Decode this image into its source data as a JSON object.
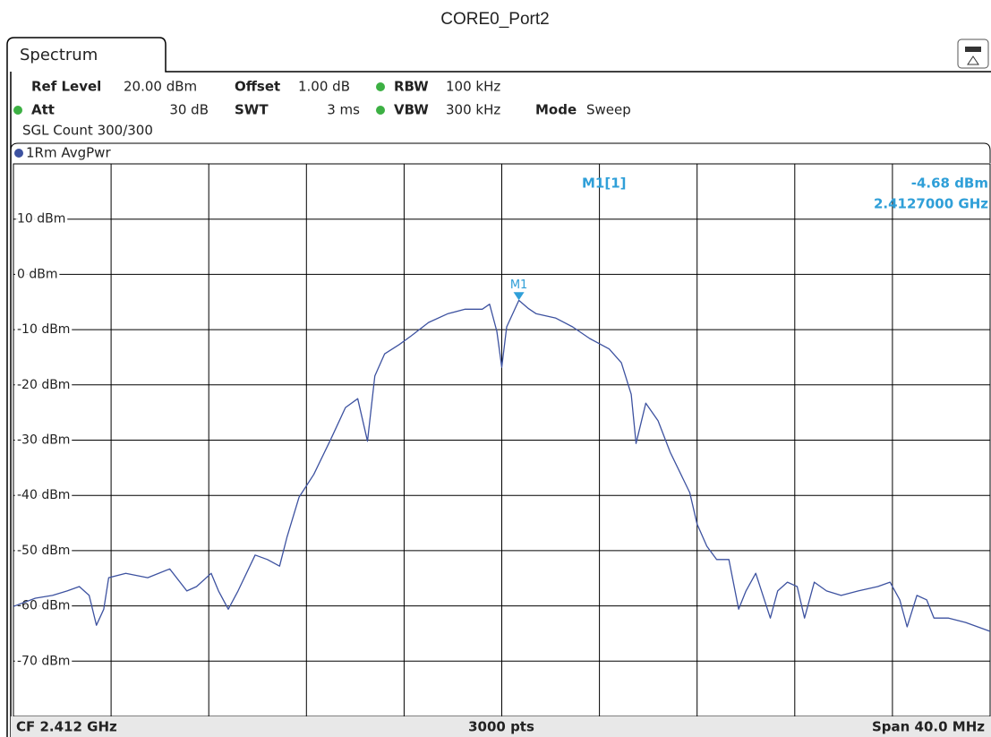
{
  "title": "CORE0_Port2",
  "tab": "Spectrum",
  "settings": {
    "ref_level_label": "Ref Level",
    "ref_level": "20.00 dBm",
    "offset_label": "Offset",
    "offset": "1.00 dB",
    "rbw_label": "RBW",
    "rbw": "100 kHz",
    "att_label": "Att",
    "att": "30 dB",
    "swt_label": "SWT",
    "swt": "3 ms",
    "vbw_label": "VBW",
    "vbw": "300 kHz",
    "mode_label": "Mode",
    "mode": "Sweep",
    "sgl_count": "SGL Count 300/300"
  },
  "chart_data": {
    "type": "line",
    "x": [
      2392.0,
      2392.9,
      2393.6,
      2394.2,
      2394.7,
      2395.1,
      2395.4,
      2395.7,
      2395.9,
      2396.6,
      2397.5,
      2398.4,
      2399.1,
      2399.5,
      2400.1,
      2400.4,
      2400.8,
      2401.2,
      2401.9,
      2402.4,
      2402.9,
      2403.2,
      2403.7,
      2404.3,
      2405.0,
      2405.6,
      2406.1,
      2406.5,
      2406.8,
      2407.2,
      2407.8,
      2408.3,
      2409.0,
      2409.8,
      2410.5,
      2411.2,
      2411.5,
      2411.8,
      2412.0,
      2412.2,
      2412.7,
      2413.1,
      2413.4,
      2414.2,
      2414.9,
      2415.6,
      2416.4,
      2416.9,
      2417.3,
      2417.5,
      2417.9,
      2418.4,
      2418.9,
      2419.7,
      2420.0,
      2420.4,
      2420.8,
      2421.3,
      2421.7,
      2422.0,
      2422.4,
      2423.0,
      2423.3,
      2423.7,
      2424.1,
      2424.4,
      2424.8,
      2425.3,
      2425.9,
      2426.6,
      2427.4,
      2427.9,
      2428.3,
      2428.6,
      2429.0,
      2429.4,
      2429.7,
      2430.3,
      2431.0,
      2432.0
    ],
    "series": [
      {
        "name": "1Rm AvgPwr",
        "color": "#3d52a0",
        "values": [
          -60.1,
          -58.6,
          -58.1,
          -57.3,
          -56.5,
          -58.1,
          -63.5,
          -60.6,
          -54.9,
          -54.1,
          -54.9,
          -53.3,
          -57.3,
          -56.5,
          -54.1,
          -57.3,
          -60.6,
          -57.3,
          -50.8,
          -51.6,
          -52.8,
          -47.6,
          -40.3,
          -36.2,
          -29.8,
          -24.1,
          -22.5,
          -30.2,
          -18.4,
          -14.4,
          -12.7,
          -11.1,
          -8.7,
          -7.1,
          -6.3,
          -6.3,
          -5.4,
          -10.3,
          -16.8,
          -9.5,
          -4.7,
          -6.2,
          -7.1,
          -7.9,
          -9.5,
          -11.6,
          -13.5,
          -16.0,
          -21.7,
          -30.6,
          -23.3,
          -26.5,
          -32.2,
          -39.5,
          -45.2,
          -49.2,
          -51.6,
          -51.6,
          -60.6,
          -57.3,
          -54.1,
          -62.2,
          -57.3,
          -55.7,
          -56.5,
          -62.2,
          -55.7,
          -57.3,
          -58.1,
          -57.3,
          -56.5,
          -55.7,
          -58.9,
          -63.8,
          -58.1,
          -58.9,
          -62.2,
          -62.2,
          -63.0,
          -64.6
        ]
      }
    ],
    "xlim": [
      2392,
      2432
    ],
    "xticks": [
      2392,
      2396,
      2400,
      2404,
      2408,
      2412,
      2416,
      2420,
      2424,
      2428,
      2432
    ],
    "ylim": [
      -80,
      20
    ],
    "yticks": [
      {
        "value": 10,
        "label": "10 dBm"
      },
      {
        "value": 0,
        "label": "0 dBm"
      },
      {
        "value": -10,
        "label": "-10 dBm"
      },
      {
        "value": -20,
        "label": "-20 dBm"
      },
      {
        "value": -30,
        "label": "-30 dBm"
      },
      {
        "value": -40,
        "label": "-40 dBm"
      },
      {
        "value": -50,
        "label": "-50 dBm"
      },
      {
        "value": -60,
        "label": "-60 dBm"
      },
      {
        "value": -70,
        "label": "-70 dBm"
      }
    ],
    "grid": true,
    "marker": {
      "name": "M1",
      "x": 2412.7,
      "y": -4.68,
      "color": "#2f9fd8",
      "readout_name": "M1[1]",
      "value_label": "-4.68 dBm",
      "x_label": "2.4127000 GHz"
    },
    "footer": {
      "center_frequency": "CF 2.412 GHz",
      "points": "3000 pts",
      "span": "Span 40.0 MHz"
    }
  }
}
